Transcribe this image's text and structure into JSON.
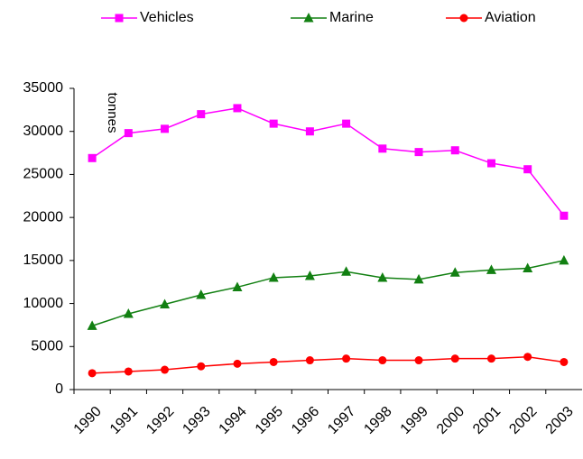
{
  "chart_data": {
    "type": "line",
    "y_label": "tonnes",
    "categories": [
      "1990",
      "1991",
      "1992",
      "1993",
      "1994",
      "1995",
      "1996",
      "1997",
      "1998",
      "1999",
      "2000",
      "2001",
      "2002",
      "2003"
    ],
    "series": [
      {
        "name": "Vehicles",
        "color": "#ff00ff",
        "marker": "square",
        "values": [
          26900,
          29800,
          30300,
          32000,
          32700,
          30900,
          30000,
          30900,
          28000,
          27600,
          27800,
          26300,
          25600,
          20200
        ]
      },
      {
        "name": "Marine",
        "color": "#128012",
        "marker": "triangle",
        "values": [
          7400,
          8800,
          9900,
          11000,
          11900,
          13000,
          13200,
          13700,
          13000,
          12800,
          13600,
          13900,
          14100,
          15000
        ]
      },
      {
        "name": "Aviation",
        "color": "#ff0000",
        "marker": "circle",
        "values": [
          1900,
          2100,
          2300,
          2700,
          3000,
          3200,
          3400,
          3600,
          3400,
          3400,
          3600,
          3600,
          3800,
          3200
        ]
      }
    ],
    "ylim": [
      0,
      35000
    ],
    "yticks": [
      0,
      5000,
      10000,
      15000,
      20000,
      25000,
      30000,
      35000
    ],
    "grid": false,
    "legend": "top"
  }
}
